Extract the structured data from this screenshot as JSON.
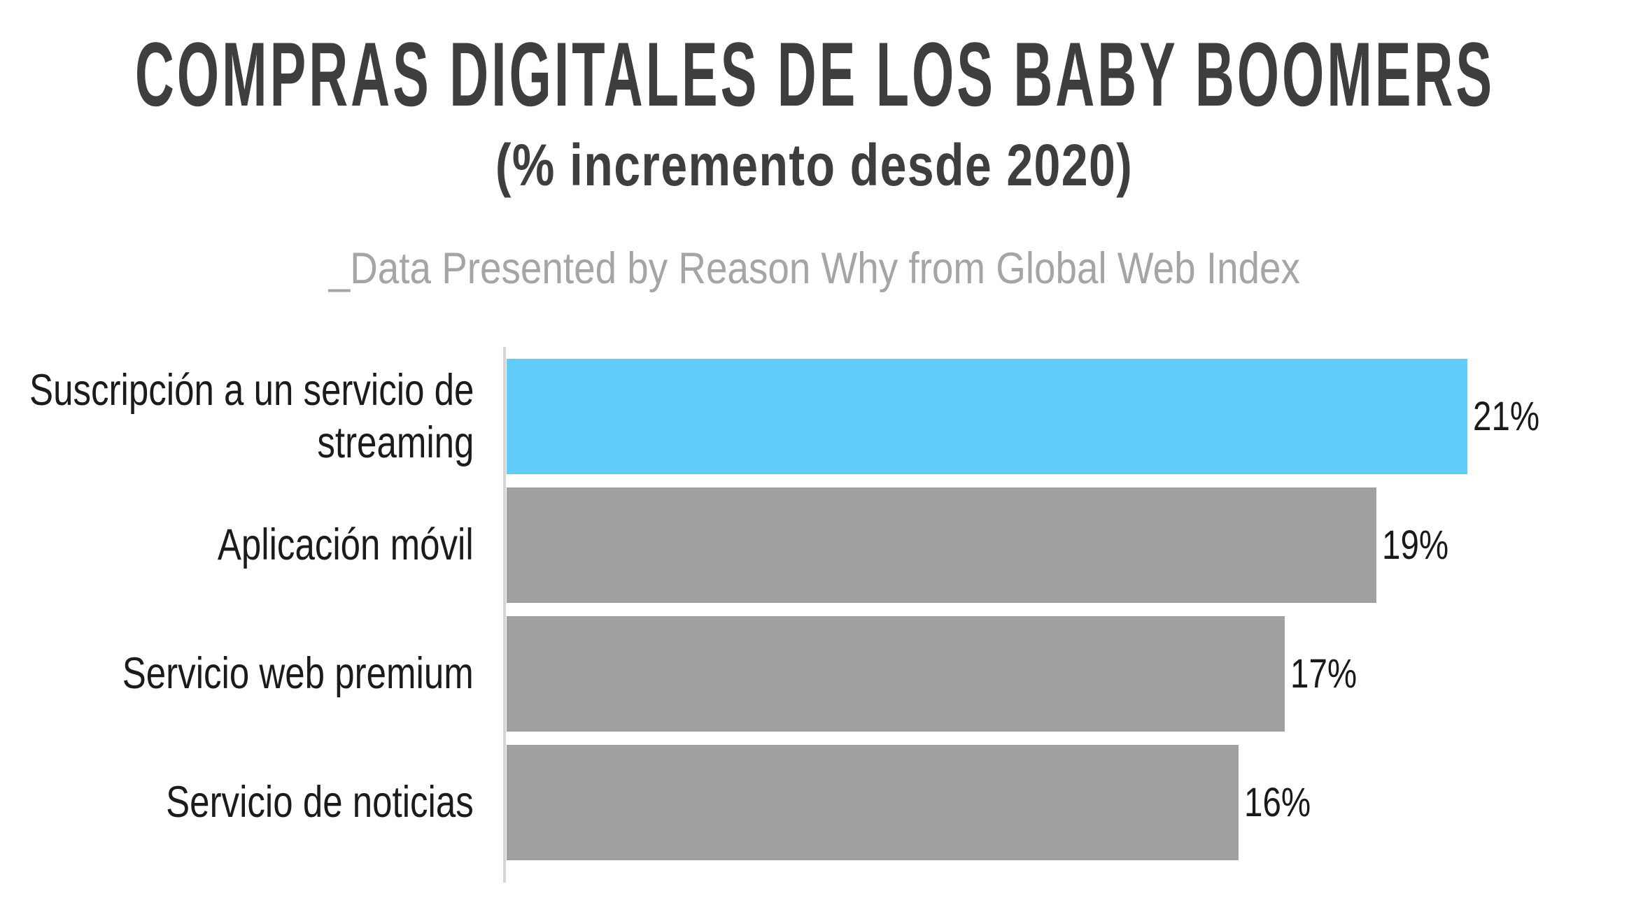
{
  "title": "COMPRAS DIGITALES DE LOS BABY BOOMERS",
  "subtitle": "(% incremento desde 2020)",
  "source_note": "_Data Presented by Reason Why from Global Web Index",
  "colors": {
    "title": "#3e3e3e",
    "note": "#a5a5a5",
    "label": "#1b1b1b",
    "value": "#1a1a1a",
    "highlight": "#60ccf8",
    "bar": "#a0a0a0",
    "axis": "#d5d5d5"
  },
  "chart_data": {
    "type": "bar",
    "orientation": "horizontal",
    "title": "COMPRAS DIGITALES DE LOS BABY BOOMERS (% incremento desde 2020)",
    "categories": [
      "Suscripción a un servicio de\nstreaming",
      "Aplicación móvil",
      "Servicio web premium",
      "Servicio de noticias"
    ],
    "values": [
      21,
      19,
      17,
      16
    ],
    "value_labels": [
      "21%",
      "19%",
      "17%",
      "16%"
    ],
    "highlight_index": 0,
    "xlim": [
      0,
      24.5
    ],
    "grid": false,
    "legend": false
  }
}
